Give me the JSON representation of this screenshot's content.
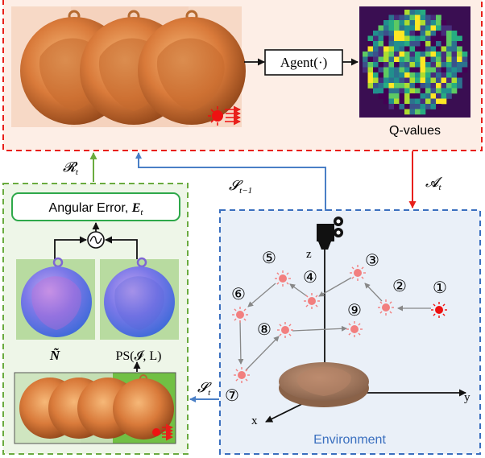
{
  "agent": {
    "box_label": "Agent(·)",
    "qvalues_label": "Q-values"
  },
  "edges": {
    "reward": "𝓡",
    "reward_sub": "t",
    "state_prev": "𝓢",
    "state_prev_sub": "t−1",
    "action": "𝓐",
    "action_sub": "t",
    "state": "𝓢",
    "state_sub": "t"
  },
  "evaluation": {
    "error_label": "Angular Error, ",
    "error_symbol": "E",
    "error_sub": "t",
    "gt_normal_label": "Ñ",
    "ps_label": "PS(𝓘, L)"
  },
  "environment": {
    "label": "Environment",
    "axis_x": "x",
    "axis_y": "y",
    "axis_z": "z",
    "waypoints": [
      "①",
      "②",
      "③",
      "④",
      "⑤",
      "⑥",
      "⑦",
      "⑧",
      "⑨"
    ]
  },
  "colors": {
    "red_dash": "#e8201a",
    "green_dash": "#6aab3f",
    "blue_dash": "#3a6fbf",
    "agent_bg": "#fdeee6",
    "env_bg": "#eaf0f8",
    "eval_bg": "#eef6e8",
    "blue_arrow": "#4a7fc6",
    "green_arrow": "#6aab3f",
    "red_arrow": "#e8201a",
    "light_source": "#f27f7f",
    "active_light": "#ee1111"
  },
  "icons": [
    "camera-icon",
    "light-icon",
    "comparator-icon",
    "lion-medallion-icon",
    "normal-map-icon"
  ]
}
